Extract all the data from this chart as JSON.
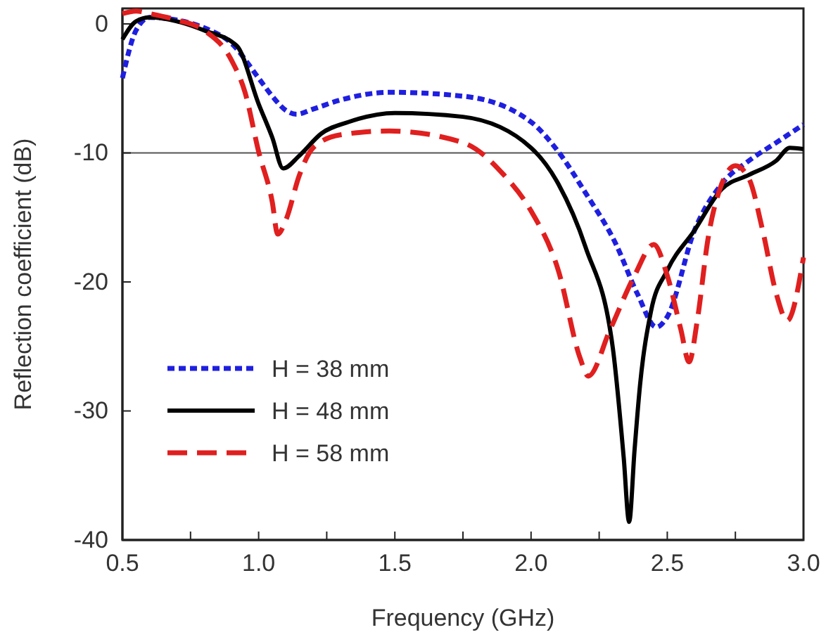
{
  "chart_data": {
    "type": "line",
    "xlabel": "Frequency (GHz)",
    "ylabel": "Reflection coefficient (dB)",
    "xlim": [
      0.5,
      3.0
    ],
    "ylim": [
      -40,
      1.2
    ],
    "xticks": [
      0.5,
      {
        "value": 0.75,
        "label": null
      },
      {
        "value": 1.0,
        "label": "1.0"
      },
      {
        "value": 1.25,
        "label": null
      },
      1.5,
      {
        "value": 1.75,
        "label": null
      },
      {
        "value": 2.0,
        "label": "2.0"
      },
      {
        "value": 2.25,
        "label": null
      },
      2.5,
      {
        "value": 2.75,
        "label": null
      },
      {
        "value": 3.0,
        "label": "3.0"
      }
    ],
    "yticks": [
      0,
      -10,
      -20,
      -30,
      -40
    ],
    "grid": false,
    "legend": "bottom left",
    "ref_lines": [
      {
        "axis": "y",
        "value": -10,
        "label": null,
        "color": "#555555"
      }
    ],
    "series": [
      {
        "name": "H = 38 mm",
        "color": "#1f1fe0",
        "line_style": "dotted",
        "x": [
          0.5,
          0.55,
          0.6,
          0.7,
          0.8,
          0.9,
          1.0,
          1.05,
          1.1,
          1.14,
          1.2,
          1.3,
          1.48,
          1.75,
          2.0,
          2.1,
          2.2,
          2.31,
          2.39,
          2.46,
          2.5,
          2.6,
          2.7,
          2.8,
          2.9,
          3.0
        ],
        "values": [
          -4.2,
          -0.5,
          0.5,
          0.3,
          -0.3,
          -1.5,
          -4.2,
          -5.6,
          -6.7,
          -7.0,
          -6.6,
          -5.9,
          -5.3,
          -5.6,
          -7.6,
          -9.9,
          -13.1,
          -17.0,
          -20.9,
          -23.5,
          -22.7,
          -16.0,
          -12.4,
          -10.6,
          -9.2,
          -7.8
        ]
      },
      {
        "name": "H = 48 mm",
        "color": "#000000",
        "line_style": "solid",
        "x": [
          0.5,
          0.55,
          0.6,
          0.7,
          0.8,
          0.92,
          1.0,
          1.05,
          1.09,
          1.15,
          1.23,
          1.33,
          1.5,
          1.75,
          2.0,
          2.1,
          2.2,
          2.3,
          2.34,
          2.36,
          2.38,
          2.4,
          2.44,
          2.5,
          2.6,
          2.7,
          2.8,
          2.9,
          2.95,
          3.0
        ],
        "values": [
          -1.2,
          0.2,
          0.5,
          0.2,
          -0.5,
          -1.7,
          -6.2,
          -8.8,
          -11.2,
          -10.2,
          -8.5,
          -7.6,
          -6.9,
          -7.2,
          -9.6,
          -12.4,
          -17.3,
          -25.1,
          -33.6,
          -38.6,
          -33.0,
          -28.0,
          -22.3,
          -19.1,
          -16.0,
          -12.8,
          -11.7,
          -10.6,
          -9.6,
          -9.7
        ]
      },
      {
        "name": "H = 58 mm",
        "color": "#e01f1f",
        "line_style": "dashed",
        "x": [
          0.5,
          0.55,
          0.6,
          0.7,
          0.8,
          0.9,
          0.95,
          1.0,
          1.05,
          1.07,
          1.1,
          1.15,
          1.2,
          1.3,
          1.48,
          1.75,
          1.9,
          2.0,
          2.1,
          2.18,
          2.21,
          2.29,
          2.38,
          2.45,
          2.5,
          2.55,
          2.58,
          2.61,
          2.65,
          2.7,
          2.75,
          2.8,
          2.85,
          2.9,
          2.94,
          3.0
        ],
        "values": [
          0.8,
          1.0,
          0.8,
          0.3,
          -0.5,
          -2.8,
          -5.3,
          -9.9,
          -13.8,
          -16.3,
          -15.2,
          -11.7,
          -9.6,
          -8.6,
          -8.3,
          -9.2,
          -11.7,
          -14.5,
          -19.1,
          -25.9,
          -27.3,
          -23.7,
          -19.5,
          -17.1,
          -19.5,
          -23.7,
          -26.2,
          -23.0,
          -16.6,
          -12.4,
          -11.0,
          -12.0,
          -16.0,
          -20.9,
          -23.0,
          -18.1
        ]
      }
    ]
  }
}
